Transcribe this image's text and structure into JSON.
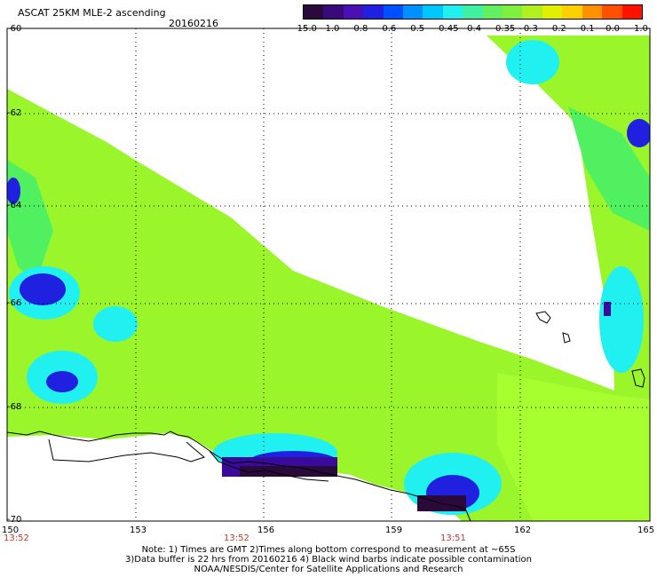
{
  "header": {
    "title": "ASCAT 25KM MLE-2 ascending",
    "date": "20160216"
  },
  "colorbar": {
    "labels": [
      "-15.0",
      "-1.0",
      "-0.8",
      "-0.6",
      "-0.5",
      "-0.45",
      "-0.4",
      "-0.35",
      "-0.3",
      "-0.2",
      "-0.1",
      "0.0",
      "1.0"
    ],
    "colors": [
      "#2a0a3a",
      "#3a0a7a",
      "#4a10b4",
      "#2020e0",
      "#0050ff",
      "#0090ff",
      "#00c8ff",
      "#20f0f0",
      "#40f0a0",
      "#60f060",
      "#80f040",
      "#b0f020",
      "#e0f000",
      "#ffd000",
      "#ff9000",
      "#ff5000",
      "#ff1000"
    ]
  },
  "map": {
    "lat_labels": [
      "-60",
      "-62",
      "-64",
      "-66",
      "-68",
      "-70"
    ],
    "lon_labels": [
      "150",
      "153",
      "156",
      "159",
      "162",
      "165"
    ],
    "times": [
      "13:52",
      "13:52",
      "13:51"
    ],
    "colors": {
      "main": "#9af52a",
      "light": "#a8ff30",
      "green": "#50f060",
      "cyan": "#20f0f0",
      "sky": "#10b8ff",
      "blue": "#2020e0",
      "indigo": "#3a0a9a",
      "dark": "#2a0a3a"
    }
  },
  "notes": {
    "line1": "Note: 1) Times are GMT 2)Times along bottom correspond to measurement at ~65S",
    "line2": "3)Data buffer is 22 hrs from 20160216 4) Black wind barbs indicate possible contamination",
    "line3": "NOAA/NESDIS/Center for Satellite Applications and Research"
  }
}
